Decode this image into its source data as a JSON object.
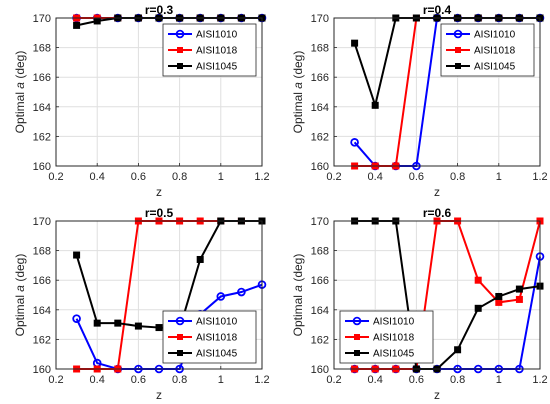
{
  "chart_data": [
    {
      "type": "line",
      "title": "r=0.3",
      "xlabel": "z",
      "ylabel_prefix": "Optimal ",
      "ylabel_symbol": "a",
      "ylabel_suffix": " (deg)",
      "xlim": [
        0.2,
        1.2
      ],
      "ylim": [
        160,
        170
      ],
      "xticks": [
        "0.2",
        "0.4",
        "0.6",
        "0.8",
        "1",
        "1.2"
      ],
      "yticks": [
        "160",
        "162",
        "164",
        "166",
        "168",
        "170"
      ],
      "grid": true,
      "legend_position": "top-right",
      "x": [
        0.3,
        0.4,
        0.5,
        0.6,
        0.7,
        0.8,
        0.9,
        1.0,
        1.1,
        1.2
      ],
      "series": [
        {
          "name": "AISI1010",
          "color": "#0000ff",
          "marker": "circle",
          "values": [
            170,
            170,
            170,
            170,
            170,
            170,
            170,
            170,
            170,
            170
          ]
        },
        {
          "name": "AISI1018",
          "color": "#ff0000",
          "marker": "square",
          "values": [
            170,
            170,
            170,
            170,
            170,
            170,
            170,
            170,
            170,
            170
          ]
        },
        {
          "name": "AISI1045",
          "color": "#000000",
          "marker": "square",
          "values": [
            169.5,
            169.8,
            170,
            170,
            170,
            170,
            170,
            170,
            170,
            170
          ]
        }
      ]
    },
    {
      "type": "line",
      "title": "r=0.4",
      "xlabel": "z",
      "ylabel_prefix": "Optimal ",
      "ylabel_symbol": "a",
      "ylabel_suffix": " (deg)",
      "xlim": [
        0.2,
        1.2
      ],
      "ylim": [
        160,
        170
      ],
      "xticks": [
        "0.2",
        "0.4",
        "0.6",
        "0.8",
        "1",
        "1.2"
      ],
      "yticks": [
        "160",
        "162",
        "164",
        "166",
        "168",
        "170"
      ],
      "grid": true,
      "legend_position": "top-right",
      "x": [
        0.3,
        0.4,
        0.5,
        0.6,
        0.7,
        0.8,
        0.9,
        1.0,
        1.1,
        1.2
      ],
      "series": [
        {
          "name": "AISI1010",
          "color": "#0000ff",
          "marker": "circle",
          "values": [
            161.6,
            160,
            160,
            160,
            170,
            170,
            170,
            170,
            170,
            170
          ]
        },
        {
          "name": "AISI1018",
          "color": "#ff0000",
          "marker": "square",
          "values": [
            160,
            160,
            160,
            170,
            170,
            170,
            170,
            170,
            170,
            170
          ]
        },
        {
          "name": "AISI1045",
          "color": "#000000",
          "marker": "square",
          "values": [
            168.3,
            164.1,
            170,
            170,
            170,
            170,
            170,
            170,
            170,
            170
          ]
        }
      ]
    },
    {
      "type": "line",
      "title": "r=0.5",
      "xlabel": "z",
      "ylabel_prefix": "Optimal ",
      "ylabel_symbol": "a",
      "ylabel_suffix": " (deg)",
      "xlim": [
        0.2,
        1.2
      ],
      "ylim": [
        160,
        170
      ],
      "xticks": [
        "0.2",
        "0.4",
        "0.6",
        "0.8",
        "1",
        "1.2"
      ],
      "yticks": [
        "160",
        "162",
        "164",
        "166",
        "168",
        "170"
      ],
      "grid": true,
      "legend_position": "bottom-right",
      "x": [
        0.3,
        0.4,
        0.5,
        0.6,
        0.7,
        0.8,
        0.9,
        1.0,
        1.1,
        1.2
      ],
      "series": [
        {
          "name": "AISI1010",
          "color": "#0000ff",
          "marker": "circle",
          "values": [
            163.4,
            160.4,
            160,
            160,
            160,
            160,
            163.7,
            164.9,
            165.2,
            165.7
          ]
        },
        {
          "name": "AISI1018",
          "color": "#ff0000",
          "marker": "square",
          "values": [
            160,
            160,
            160,
            170,
            170,
            170,
            170,
            170,
            170,
            170
          ]
        },
        {
          "name": "AISI1045",
          "color": "#000000",
          "marker": "square",
          "values": [
            167.7,
            163.1,
            163.1,
            162.9,
            162.8,
            162.7,
            167.4,
            170,
            170,
            170
          ]
        }
      ]
    },
    {
      "type": "line",
      "title": "r=0.6",
      "xlabel": "z",
      "ylabel_prefix": "Optimal ",
      "ylabel_symbol": "a",
      "ylabel_suffix": " (deg)",
      "xlim": [
        0.2,
        1.2
      ],
      "ylim": [
        160,
        170
      ],
      "xticks": [
        "0.2",
        "0.4",
        "0.6",
        "0.8",
        "1",
        "1.2"
      ],
      "yticks": [
        "160",
        "162",
        "164",
        "166",
        "168",
        "170"
      ],
      "grid": true,
      "legend_position": "bottom-left",
      "x": [
        0.3,
        0.4,
        0.5,
        0.6,
        0.7,
        0.8,
        0.9,
        1.0,
        1.1,
        1.2
      ],
      "series": [
        {
          "name": "AISI1010",
          "color": "#0000ff",
          "marker": "circle",
          "values": [
            160,
            160,
            160,
            160,
            160,
            160,
            160,
            160,
            160,
            167.6
          ]
        },
        {
          "name": "AISI1018",
          "color": "#ff0000",
          "marker": "square",
          "values": [
            160,
            160,
            160,
            160,
            170,
            170,
            166,
            164.5,
            164.7,
            170
          ]
        },
        {
          "name": "AISI1045",
          "color": "#000000",
          "marker": "square",
          "values": [
            170,
            170,
            170,
            160,
            160,
            161.3,
            164.1,
            164.9,
            165.4,
            165.6
          ]
        }
      ]
    }
  ]
}
